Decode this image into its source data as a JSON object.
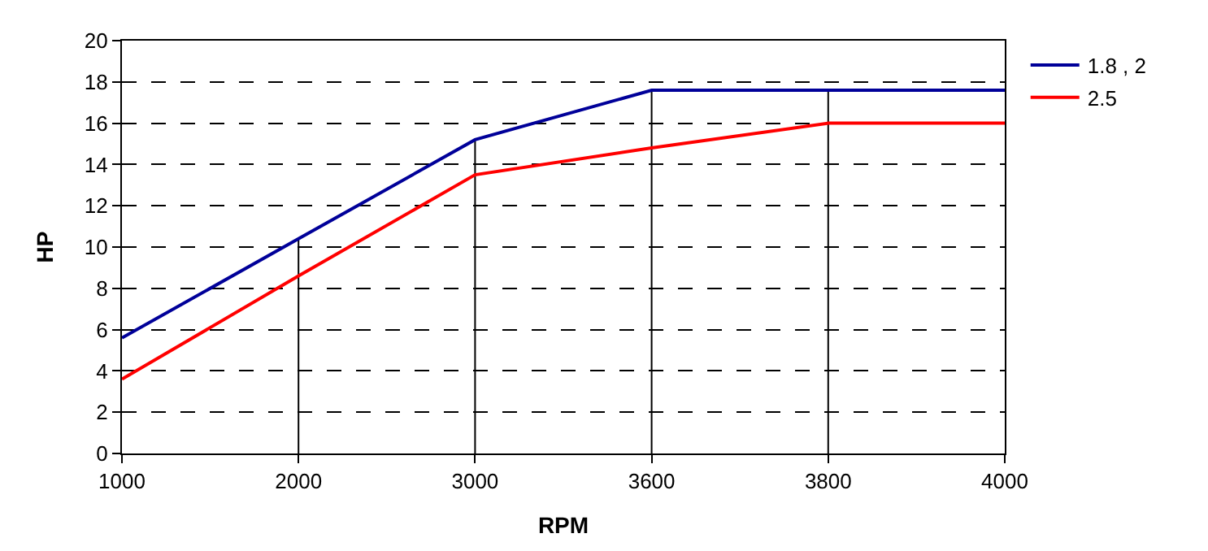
{
  "chart_data": {
    "type": "line",
    "xlabel": "RPM",
    "ylabel": "HP",
    "categories": [
      "1000",
      "2000",
      "3000",
      "3600",
      "3800",
      "4000"
    ],
    "series": [
      {
        "name": "1.8 , 2",
        "color": "#000099",
        "values": [
          5.6,
          10.4,
          15.2,
          17.6,
          17.6,
          17.6
        ]
      },
      {
        "name": "2.5",
        "color": "#ff0000",
        "values": [
          3.6,
          8.6,
          13.5,
          14.8,
          16.0,
          16.0
        ]
      }
    ],
    "ref_lines": [
      {
        "axis": "x",
        "value": "2000",
        "color": "#000000"
      },
      {
        "axis": "x",
        "value": "3000",
        "color": "#000000"
      },
      {
        "axis": "x",
        "value": "3600",
        "color": "#000000"
      },
      {
        "axis": "x",
        "value": "3800",
        "color": "#000000"
      }
    ],
    "ylim": [
      0,
      20
    ],
    "yticks": [
      0,
      2,
      4,
      6,
      8,
      10,
      12,
      14,
      16,
      18,
      20
    ],
    "grid": "y",
    "legend": "right",
    "marker": "none",
    "line_style": "solid"
  }
}
